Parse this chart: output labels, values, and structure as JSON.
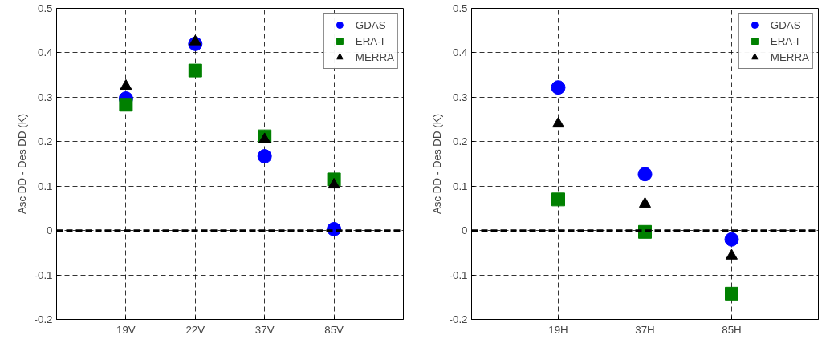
{
  "chart_data": [
    {
      "type": "scatter",
      "ylabel": "Asc DD - Des DD (K)",
      "categories": [
        "19V",
        "22V",
        "37V",
        "85V"
      ],
      "ylim": [
        -0.2,
        0.5
      ],
      "yticks": [
        -0.2,
        -0.1,
        0,
        0.1,
        0.2,
        0.3,
        0.4,
        0.5
      ],
      "grid": true,
      "legend": "top right",
      "ref_lines": [
        {
          "axis": "y",
          "value": 0,
          "color": "#000000",
          "line_style": "dashed"
        }
      ],
      "series": [
        {
          "name": "GDAS",
          "color": "#0000ff",
          "marker": "circle",
          "values": [
            0.297,
            0.42,
            0.167,
            0.003
          ]
        },
        {
          "name": "ERA-I",
          "color": "#008000",
          "marker": "square",
          "values": [
            0.283,
            0.36,
            0.212,
            0.115
          ]
        },
        {
          "name": "MERRA",
          "color": "#000000",
          "marker": "triangle",
          "values": [
            0.325,
            0.425,
            0.205,
            0.103
          ]
        }
      ]
    },
    {
      "type": "scatter",
      "ylabel": "Asc DD - Des DD (K)",
      "categories": [
        "19H",
        "37H",
        "85H"
      ],
      "ylim": [
        -0.2,
        0.5
      ],
      "yticks": [
        -0.2,
        -0.1,
        0,
        0.1,
        0.2,
        0.3,
        0.4,
        0.5
      ],
      "grid": true,
      "legend": "top right",
      "ref_lines": [
        {
          "axis": "y",
          "value": 0,
          "color": "#000000",
          "line_style": "dashed"
        }
      ],
      "series": [
        {
          "name": "GDAS",
          "color": "#0000ff",
          "marker": "circle",
          "values": [
            0.322,
            0.127,
            -0.02
          ]
        },
        {
          "name": "ERA-I",
          "color": "#008000",
          "marker": "square",
          "values": [
            0.07,
            -0.003,
            -0.142
          ]
        },
        {
          "name": "MERRA",
          "color": "#000000",
          "marker": "triangle",
          "values": [
            0.24,
            0.06,
            -0.057
          ]
        }
      ]
    }
  ]
}
